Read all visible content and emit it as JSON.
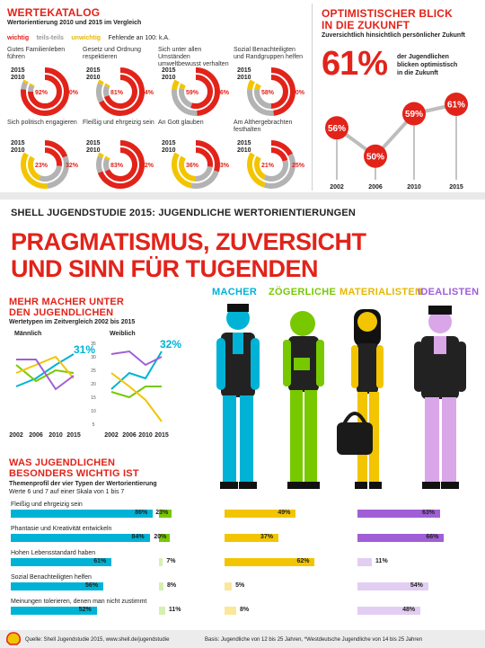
{
  "wertekatalog": {
    "title": "WERTEKATALOG",
    "subtitle": "Wertorientierung 2010 und 2015 im Vergleich",
    "legend": {
      "wichtig": "wichtig",
      "teils": "teils-teils",
      "unwichtig": "unwichtig",
      "fehlende": "Fehlende an 100: k.A."
    },
    "year_a": "2015",
    "year_b": "2010",
    "colors": {
      "wichtig": "#e2231a",
      "teils": "#b3b3b3",
      "unwichtig": "#f2c500"
    }
  },
  "optimism": {
    "title_line1": "OPTIMISTISCHER BLICK",
    "title_line2": "IN DIE ZUKUNFT",
    "subtitle": "Zuversichtlich hinsichtlich persönlicher Zukunft",
    "big_value": "61%",
    "text_line1": "der Jugendlichen",
    "text_line2": "blicken optimistisch",
    "text_line3": "in die Zukunft"
  },
  "banner": {
    "headline": "SHELL JUGENDSTUDIE 2015: JUGENDLICHE WERTORIENTIERUNGEN"
  },
  "title": {
    "line1": "PRAGMATISMUS, ZUVERSICHT",
    "line2": "UND SINN FÜR TUGENDEN"
  },
  "macher": {
    "title_line1": "MEHR MACHER UNTER",
    "title_line2": "DEN JUGENDLICHEN",
    "subtitle": "Wertetypen im Zeitvergleich 2002 bis 2015",
    "male_label": "Männlich",
    "female_label": "Weiblich",
    "male_value": "31%",
    "female_value": "32%",
    "axis_ticks": [
      "35",
      "30",
      "25",
      "20",
      "15",
      "10",
      "5"
    ]
  },
  "personas": {
    "macher": "MACHER",
    "zoegerliche": "ZÖGERLICHE",
    "materialisten": "MATERIALISTEN",
    "idealisten": "IDEALISTEN"
  },
  "wichtig": {
    "title_line1": "WAS JUGENDLICHEN",
    "title_line2": "BESONDERS WICHTIG IST",
    "subtitle_line1": "Themenprofil der vier Typen der Wertorientierung",
    "subtitle_line2": "Werte 6 und 7 auf einer Skala von 1 bis 7"
  },
  "footer": {
    "source": "Quelle: Shell Jugendstudie 2015, www.shell.de/jugendstudie",
    "basis": "Basis: Jugendliche von 12 bis 25 Jahren, *Westdeutsche Jugendliche von 14 bis 25 Jahren"
  },
  "chart_data": [
    {
      "type": "pie",
      "title": "WERTEKATALOG",
      "series_order": [
        "wichtig",
        "teils-teils",
        "unwichtig"
      ],
      "items": [
        {
          "label": "Gutes Familienleben führen",
          "v2015": "92%",
          "v2010": "90%",
          "p2015": [
            92,
            6,
            2
          ],
          "p2010": [
            90,
            8,
            2
          ]
        },
        {
          "label": "Gesetz und Ordnung respektieren",
          "v2015": "81%",
          "v2010": "84%",
          "p2015": [
            81,
            16,
            3
          ],
          "p2010": [
            84,
            13,
            3
          ]
        },
        {
          "label": "Sich unter allen Umständen umweltbewusst verhalten",
          "v2015": "59%",
          "v2010": "66%",
          "p2015": [
            59,
            33,
            8
          ],
          "p2010": [
            66,
            28,
            6
          ]
        },
        {
          "label": "Sozial Benachteiligten und Randgruppen helfen",
          "v2015": "58%",
          "v2010": "60%",
          "p2015": [
            58,
            34,
            8
          ],
          "p2010": [
            60,
            33,
            7
          ]
        },
        {
          "label": "Sich politisch engagieren",
          "v2015": "23%",
          "v2010": "32%",
          "p2015": [
            23,
            35,
            42
          ],
          "p2010": [
            32,
            35,
            33
          ]
        },
        {
          "label": "Fleißig und ehrgeizig sein",
          "v2015": "83%",
          "v2010": "82%",
          "p2015": [
            83,
            14,
            3
          ],
          "p2010": [
            82,
            15,
            3
          ]
        },
        {
          "label": "An Gott glauben",
          "v2015": "36%",
          "v2010": "33%",
          "p2015": [
            36,
            28,
            36
          ],
          "p2010": [
            33,
            27,
            40
          ]
        },
        {
          "label": "Am Althergebrachten festhalten",
          "v2015": "21%",
          "v2010": "25%",
          "p2015": [
            21,
            45,
            34
          ],
          "p2010": [
            25,
            44,
            31
          ]
        }
      ]
    },
    {
      "type": "line",
      "title": "OPTIMISTISCHER BLICK IN DIE ZUKUNFT",
      "x": [
        "2002",
        "2006",
        "2010",
        "2015"
      ],
      "values": [
        56,
        50,
        59,
        61
      ],
      "labels": [
        "56%",
        "50%",
        "59%",
        "61%"
      ],
      "ylim": [
        45,
        65
      ]
    },
    {
      "type": "line",
      "title": "Männlich",
      "x": [
        "2002",
        "2006",
        "2010",
        "2015"
      ],
      "series": [
        {
          "name": "MACHER",
          "color": "#00b2d6",
          "values": [
            19,
            22,
            27,
            31
          ]
        },
        {
          "name": "ZÖGERLICHE",
          "color": "#78c800",
          "values": [
            27,
            21,
            25,
            24
          ]
        },
        {
          "name": "MATERIALISTEN",
          "color": "#f2c500",
          "values": [
            24,
            27,
            30,
            22
          ]
        },
        {
          "name": "IDEALISTEN",
          "color": "#a05fd6",
          "values": [
            29,
            29,
            18,
            23
          ]
        }
      ],
      "ylim": [
        5,
        35
      ]
    },
    {
      "type": "line",
      "title": "Weiblich",
      "x": [
        "2002",
        "2006",
        "2010",
        "2015"
      ],
      "series": [
        {
          "name": "MACHER",
          "color": "#00b2d6",
          "values": [
            18,
            24,
            22,
            32
          ]
        },
        {
          "name": "ZÖGERLICHE",
          "color": "#78c800",
          "values": [
            17,
            15,
            19,
            19
          ]
        },
        {
          "name": "MATERIALISTEN",
          "color": "#f2c500",
          "values": [
            24,
            19,
            14,
            6
          ]
        },
        {
          "name": "IDEALISTEN",
          "color": "#a05fd6",
          "values": [
            31,
            32,
            27,
            30
          ]
        }
      ],
      "ylim": [
        5,
        35
      ]
    },
    {
      "type": "bar",
      "title": "WAS JUGENDLICHEN BESONDERS WICHTIG IST",
      "categories": [
        "Fleißig und ehrgeizig sein",
        "Phantasie und Kreativität entwickeln",
        "Hohen Lebensstandard haben",
        "Sozial Benachteiligten helfen",
        "Meinungen tolerieren, denen man nicht zustimmt"
      ],
      "series": [
        {
          "name": "MACHER",
          "color": "#00b2d6",
          "values": [
            86,
            84,
            61,
            56,
            52
          ],
          "labels": [
            "86%",
            "84%",
            "61%",
            "56%",
            "52%"
          ]
        },
        {
          "name": "ZÖGERLICHE",
          "color": "#78c800",
          "values": [
            23,
            20,
            7,
            8,
            11
          ],
          "labels": [
            "23%",
            "20%",
            "7%",
            "8%",
            "11%"
          ]
        },
        {
          "name": "MATERIALISTEN",
          "color": "#f2c500",
          "values": [
            49,
            37,
            62,
            5,
            8
          ],
          "labels": [
            "49%",
            "37%",
            "62%",
            "5%",
            "8%"
          ]
        },
        {
          "name": "IDEALISTEN",
          "color": "#a05fd6",
          "values": [
            63,
            66,
            11,
            54,
            48
          ],
          "labels": [
            "63%",
            "66%",
            "11%",
            "54%",
            "48%"
          ]
        }
      ],
      "ylim": [
        0,
        100
      ]
    }
  ]
}
